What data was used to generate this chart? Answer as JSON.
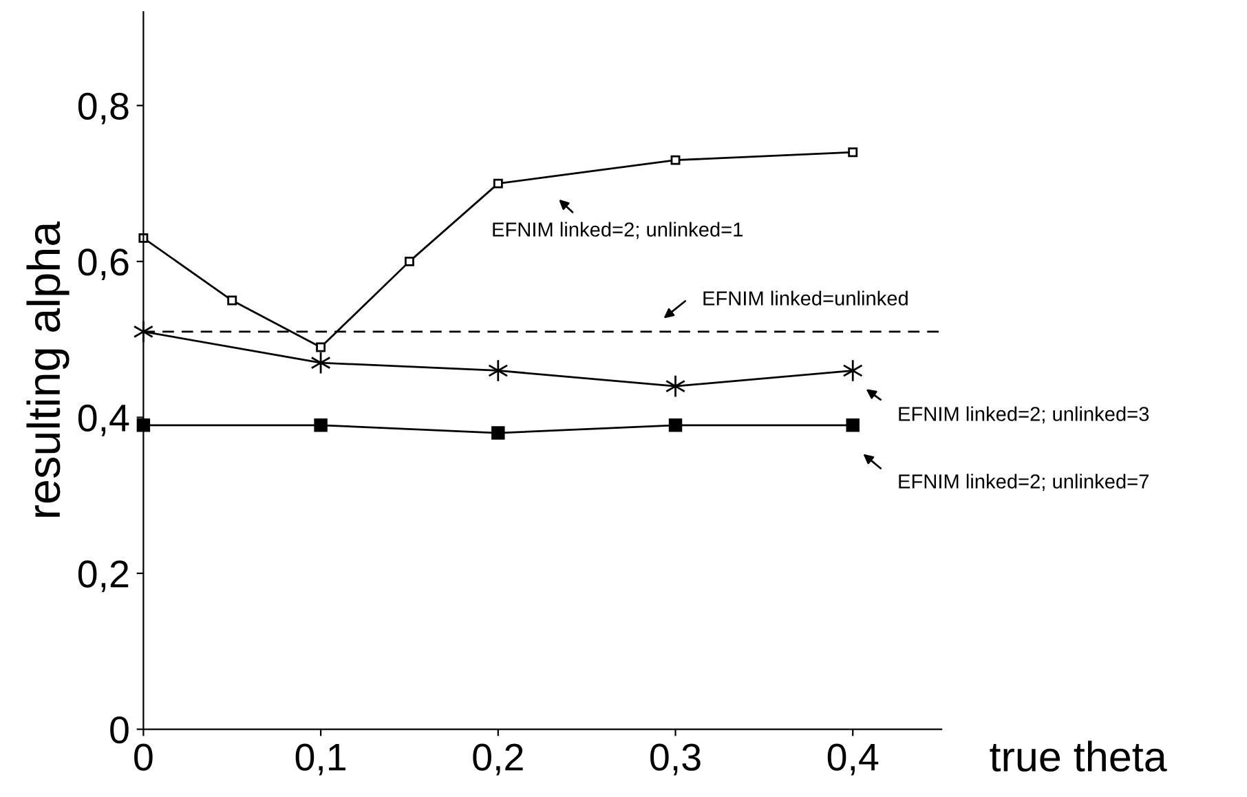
{
  "chart_data": {
    "type": "line",
    "xlabel": "true theta",
    "ylabel": "resulting alpha",
    "xlim": [
      0,
      0.45
    ],
    "ylim": [
      0,
      0.92
    ],
    "xticks": [
      0,
      {
        "value": 0.1,
        "label": "0,1"
      },
      {
        "value": 0.2,
        "label": "0,2"
      },
      {
        "value": 0.3,
        "label": "0,3"
      },
      {
        "value": 0.4,
        "label": "0,4"
      }
    ],
    "yticks": [
      0,
      {
        "value": 0.2,
        "label": "0,2"
      },
      {
        "value": 0.4,
        "label": "0,4"
      },
      {
        "value": 0.6,
        "label": "0,6"
      },
      {
        "value": 0.8,
        "label": "0,8"
      }
    ],
    "grid": false,
    "legend": false,
    "series": [
      {
        "color": "#000000",
        "marker": "square_open",
        "line_style": "solid",
        "x": [
          0,
          0.05,
          0.1,
          0.15,
          0.2,
          0.3,
          0.4
        ],
        "values": [
          0.63,
          0.55,
          0.49,
          0.6,
          0.7,
          0.73,
          0.74
        ]
      },
      {
        "color": "#000000",
        "line_style": "dashed",
        "x": [
          0,
          0.45
        ],
        "values": [
          0.51,
          0.51
        ]
      },
      {
        "color": "#000000",
        "marker": "cross",
        "line_style": "solid",
        "x": [
          0,
          0.1,
          0.2,
          0.3,
          0.4
        ],
        "values": [
          0.51,
          0.47,
          0.46,
          0.44,
          0.46
        ]
      },
      {
        "color": "#000000",
        "marker": "square",
        "line_style": "solid",
        "x": [
          0,
          0.1,
          0.2,
          0.3,
          0.4
        ],
        "values": [
          0.39,
          0.39,
          0.38,
          0.39,
          0.39
        ]
      }
    ],
    "annotations": [
      "EFNIM linked=2; unlinked=1",
      "EFNIM linked=unlinked",
      "EFNIM linked=2; unlinked=3",
      "EFNIM linked=2; unlinked=7"
    ]
  }
}
